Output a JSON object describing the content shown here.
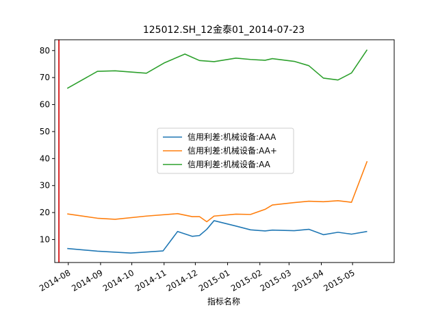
{
  "chart_data": {
    "type": "line",
    "title": "125012.SH_12金泰01_2014-07-23",
    "xlabel": "指标名称",
    "ylabel": "",
    "ylim": [
      1.5,
      84
    ],
    "xlim": [
      "2014-07-19",
      "2015-06-10"
    ],
    "yticks": [
      10,
      20,
      30,
      40,
      50,
      60,
      70,
      80
    ],
    "xticks": [
      {
        "date": "2014-08-01",
        "label": "2014-08"
      },
      {
        "date": "2014-09-01",
        "label": "2014-09"
      },
      {
        "date": "2014-10-01",
        "label": "2014-10"
      },
      {
        "date": "2014-11-01",
        "label": "2014-11"
      },
      {
        "date": "2014-12-01",
        "label": "2014-12"
      },
      {
        "date": "2015-01-01",
        "label": "2015-01"
      },
      {
        "date": "2015-02-01",
        "label": "2015-02"
      },
      {
        "date": "2015-03-01",
        "label": "2015-03"
      },
      {
        "date": "2015-04-01",
        "label": "2015-04"
      },
      {
        "date": "2015-05-01",
        "label": "2015-05"
      }
    ],
    "vline": {
      "date": "2014-07-23",
      "color": "#d62728"
    },
    "grid": false,
    "legend_position": "center",
    "series": [
      {
        "name": "信用利差:机械设备:AAA",
        "color": "#1f77b4",
        "points": [
          {
            "x": "2014-07-31",
            "y": 6.7
          },
          {
            "x": "2014-08-29",
            "y": 5.7
          },
          {
            "x": "2014-09-30",
            "y": 5.0
          },
          {
            "x": "2014-10-31",
            "y": 5.8
          },
          {
            "x": "2014-11-14",
            "y": 13.0
          },
          {
            "x": "2014-11-28",
            "y": 11.2
          },
          {
            "x": "2014-12-05",
            "y": 11.5
          },
          {
            "x": "2014-12-12",
            "y": 13.8
          },
          {
            "x": "2014-12-19",
            "y": 17.0
          },
          {
            "x": "2015-01-09",
            "y": 15.0
          },
          {
            "x": "2015-01-23",
            "y": 13.6
          },
          {
            "x": "2015-02-06",
            "y": 13.2
          },
          {
            "x": "2015-02-13",
            "y": 13.5
          },
          {
            "x": "2015-03-06",
            "y": 13.3
          },
          {
            "x": "2015-03-20",
            "y": 13.8
          },
          {
            "x": "2015-04-03",
            "y": 11.8
          },
          {
            "x": "2015-04-17",
            "y": 12.7
          },
          {
            "x": "2015-04-30",
            "y": 12.0
          },
          {
            "x": "2015-05-15",
            "y": 13.0
          }
        ]
      },
      {
        "name": "信用利差:机械设备:AA+",
        "color": "#ff7f0e",
        "points": [
          {
            "x": "2014-07-31",
            "y": 19.5
          },
          {
            "x": "2014-08-29",
            "y": 17.9
          },
          {
            "x": "2014-09-15",
            "y": 17.5
          },
          {
            "x": "2014-10-15",
            "y": 18.7
          },
          {
            "x": "2014-11-14",
            "y": 19.6
          },
          {
            "x": "2014-11-28",
            "y": 18.5
          },
          {
            "x": "2014-12-05",
            "y": 18.5
          },
          {
            "x": "2014-12-12",
            "y": 16.6
          },
          {
            "x": "2014-12-19",
            "y": 18.7
          },
          {
            "x": "2015-01-09",
            "y": 19.4
          },
          {
            "x": "2015-01-23",
            "y": 19.3
          },
          {
            "x": "2015-02-06",
            "y": 21.2
          },
          {
            "x": "2015-02-13",
            "y": 22.8
          },
          {
            "x": "2015-03-06",
            "y": 23.7
          },
          {
            "x": "2015-03-20",
            "y": 24.2
          },
          {
            "x": "2015-04-03",
            "y": 24.0
          },
          {
            "x": "2015-04-17",
            "y": 24.4
          },
          {
            "x": "2015-04-30",
            "y": 23.8
          },
          {
            "x": "2015-05-15",
            "y": 39.0
          }
        ]
      },
      {
        "name": "信用利差:机械设备:AA",
        "color": "#2ca02c",
        "points": [
          {
            "x": "2014-07-31",
            "y": 66.0
          },
          {
            "x": "2014-08-29",
            "y": 72.3
          },
          {
            "x": "2014-09-15",
            "y": 72.5
          },
          {
            "x": "2014-10-15",
            "y": 71.6
          },
          {
            "x": "2014-11-01",
            "y": 75.4
          },
          {
            "x": "2014-11-21",
            "y": 78.7
          },
          {
            "x": "2014-11-28",
            "y": 77.5
          },
          {
            "x": "2014-12-05",
            "y": 76.3
          },
          {
            "x": "2014-12-19",
            "y": 75.9
          },
          {
            "x": "2015-01-09",
            "y": 77.2
          },
          {
            "x": "2015-01-23",
            "y": 76.7
          },
          {
            "x": "2015-02-06",
            "y": 76.4
          },
          {
            "x": "2015-02-13",
            "y": 77.0
          },
          {
            "x": "2015-03-06",
            "y": 76.0
          },
          {
            "x": "2015-03-20",
            "y": 74.4
          },
          {
            "x": "2015-04-03",
            "y": 69.8
          },
          {
            "x": "2015-04-17",
            "y": 69.1
          },
          {
            "x": "2015-04-30",
            "y": 71.7
          },
          {
            "x": "2015-05-15",
            "y": 80.3
          }
        ]
      }
    ]
  }
}
